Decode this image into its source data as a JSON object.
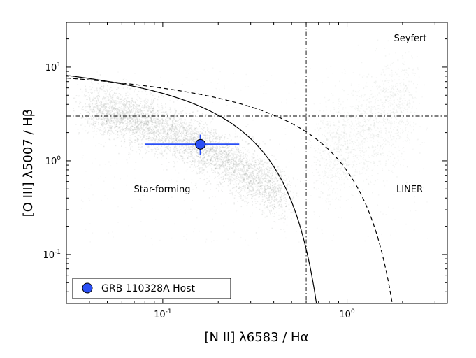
{
  "chart_data": {
    "type": "scatter",
    "x_scale": "log",
    "y_scale": "log",
    "xlim": [
      0.03,
      3.5
    ],
    "ylim": [
      0.03,
      30
    ],
    "xlabel": "[N II] λ6583 / Hα",
    "ylabel": "[O III] λ5007 / Hβ",
    "x_ticks": [
      {
        "value": 0.1,
        "base": "10",
        "exp": "-1"
      },
      {
        "value": 1.0,
        "base": "10",
        "exp": "0"
      }
    ],
    "y_ticks": [
      {
        "value": 0.1,
        "base": "10",
        "exp": "-1"
      },
      {
        "value": 1.0,
        "base": "10",
        "exp": "0"
      },
      {
        "value": 10.0,
        "base": "10",
        "exp": "1"
      }
    ],
    "region_labels": {
      "seyfert": "Seyfert",
      "star_forming": "Star-forming",
      "liner": "LINER"
    },
    "divider_x": 0.6,
    "divider_y": 3.0,
    "curves": [
      {
        "name": "kauffmann",
        "style": "solid",
        "a": 0.61,
        "b": 0.05,
        "c": 1.3
      },
      {
        "name": "kewley",
        "style": "dashed",
        "a": 0.61,
        "b": 0.47,
        "c": 1.19
      }
    ],
    "background_sample": {
      "color": "#8a8f8a"
    },
    "host_point": {
      "label": "GRB 110328A Host",
      "x": 0.16,
      "y": 1.5,
      "x_err": [
        0.08,
        0.26
      ],
      "y_err": [
        1.15,
        1.9
      ],
      "color": "#2a4ff5"
    },
    "legend": {
      "position": "lower-left"
    }
  }
}
